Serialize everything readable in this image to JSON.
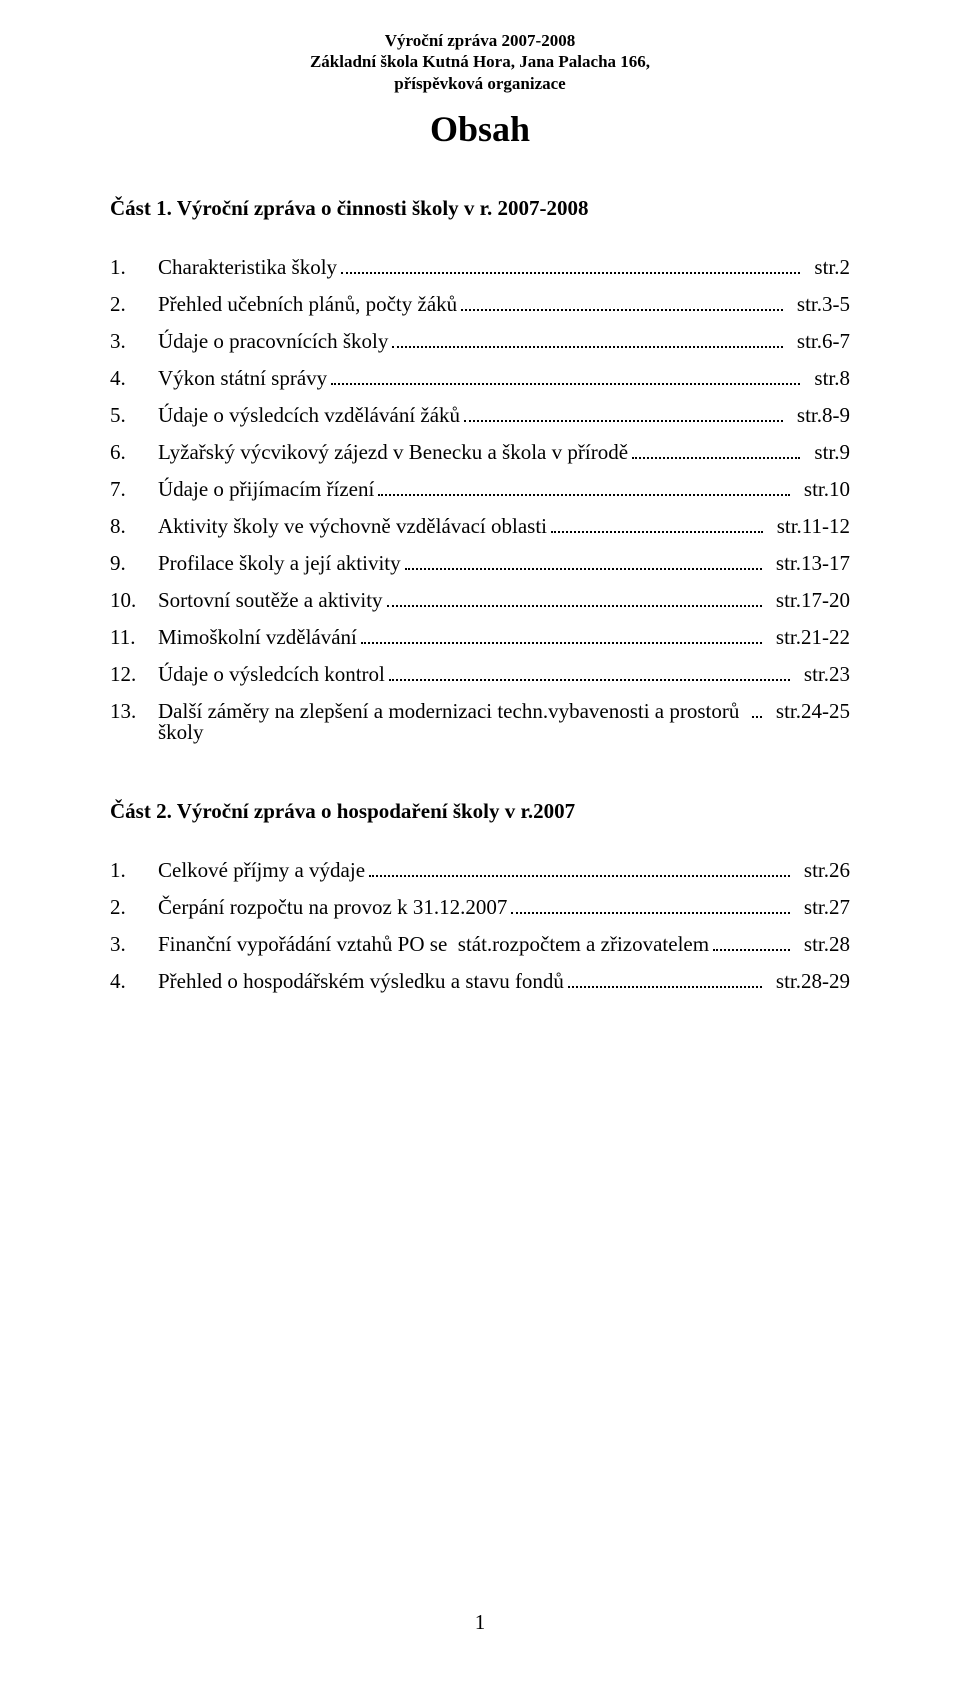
{
  "header": {
    "line1": "Výroční zpráva 2007-2008",
    "line2": "Základní škola Kutná Hora, Jana Palacha 166,",
    "line3": "příspěvková organizace"
  },
  "title": "Obsah",
  "part1": {
    "heading": "Část 1. Výroční zpráva o činnosti školy v r. 2007-2008",
    "items": [
      {
        "n": "1.",
        "label": "Charakteristika školy",
        "page": "str.2"
      },
      {
        "n": "2.",
        "label": "Přehled učebních plánů, počty žáků",
        "page": "str.3-5"
      },
      {
        "n": "3.",
        "label": "Údaje o pracovnících školy",
        "page": "str.6-7"
      },
      {
        "n": "4.",
        "label": "Výkon státní správy",
        "page": "str.8"
      },
      {
        "n": "5.",
        "label": "Údaje o výsledcích vzdělávání žáků",
        "page": "str.8-9"
      },
      {
        "n": "6.",
        "label": "Lyžařský výcvikový zájezd v Benecku a škola v přírodě",
        "page": "str.9"
      },
      {
        "n": "7.",
        "label": "Údaje o přijímacím řízení",
        "page": "str.10"
      },
      {
        "n": "8.",
        "label": "Aktivity školy ve výchovně vzdělávací oblasti",
        "page": "str.11-12"
      },
      {
        "n": "9.",
        "label": "Profilace školy a její aktivity",
        "page": "str.13-17"
      },
      {
        "n": "10.",
        "label": "Sortovní soutěže a aktivity",
        "page": "str.17-20"
      },
      {
        "n": "11.",
        "label": "Mimoškolní vzdělávání",
        "page": "str.21-22"
      },
      {
        "n": "12.",
        "label": "Údaje o výsledcích kontrol",
        "page": "str.23"
      },
      {
        "n": "13.",
        "label": "Další záměry na zlepšení a modernizaci techn.vybavenosti a prostorů školy",
        "page": "str.24-25"
      }
    ]
  },
  "part2": {
    "heading": "Část 2. Výroční zpráva o hospodaření školy v r.2007",
    "items": [
      {
        "n": "1.",
        "label": "Celkové příjmy a výdaje",
        "page": "str.26"
      },
      {
        "n": "2.",
        "label": "Čerpání rozpočtu na provoz k 31.12.2007",
        "page": "str.27"
      },
      {
        "n": "3.",
        "label": "Finanční vypořádání vztahů PO se  stát.rozpočtem a zřizovatelem",
        "page": "str.28"
      },
      {
        "n": "4.",
        "label": "Přehled o hospodářském výsledku a stavu fondů",
        "page": "str.28-29"
      }
    ]
  },
  "page_number": "1"
}
